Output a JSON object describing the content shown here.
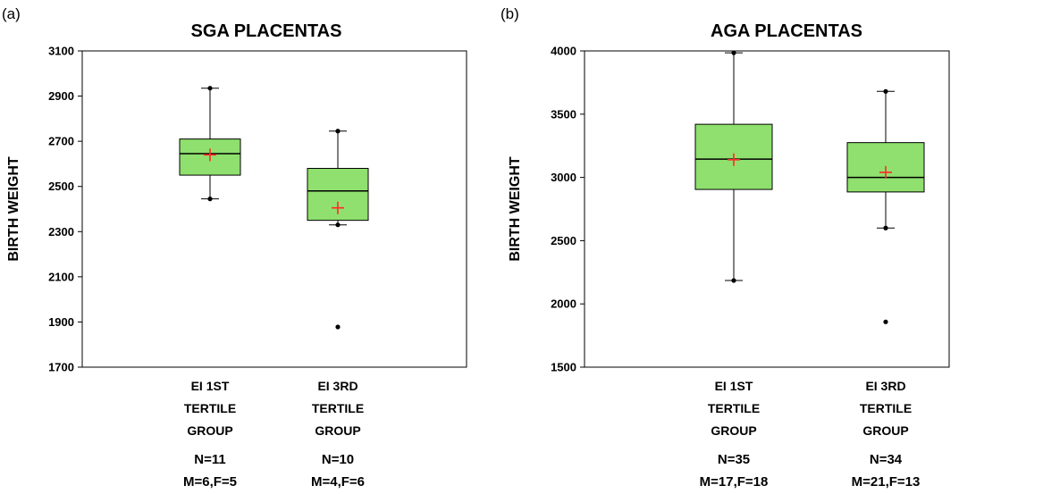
{
  "chart_data": [
    {
      "panel_label": "(a)",
      "type": "box",
      "title": "SGA PLACENTAS",
      "xlabel": "",
      "ylabel": "BIRTH WEIGHT",
      "ylim": [
        1700,
        3100
      ],
      "yticks": [
        1700,
        1900,
        2100,
        2300,
        2500,
        2700,
        2900,
        3100
      ],
      "grid": false,
      "box_color": "#8fe06e",
      "mean_color": "#ff2a2a",
      "categories": [
        {
          "label_lines": [
            "EI  1ST",
            "TERTILE",
            "GROUP"
          ],
          "notes": [
            "N=11",
            "M=6,F=5"
          ],
          "min": 2445,
          "q1": 2550,
          "median": 2645,
          "q3": 2710,
          "max": 2935,
          "mean": 2640,
          "outliers": []
        },
        {
          "label_lines": [
            "EI  3RD",
            "TERTILE",
            "GROUP"
          ],
          "notes": [
            "N=10",
            "M=4,F=6"
          ],
          "min": 2330,
          "q1": 2350,
          "median": 2480,
          "q3": 2580,
          "max": 2745,
          "mean": 2405,
          "outliers": [
            1878
          ]
        }
      ]
    },
    {
      "panel_label": "(b)",
      "type": "box",
      "title": "AGA PLACENTAS",
      "xlabel": "",
      "ylabel": "BIRTH WEIGHT",
      "ylim": [
        1500,
        4000
      ],
      "yticks": [
        1500,
        2000,
        2500,
        3000,
        3500,
        4000
      ],
      "grid": false,
      "box_color": "#8fe06e",
      "mean_color": "#ff2a2a",
      "categories": [
        {
          "label_lines": [
            "EI 1ST",
            "TERTILE",
            "GROUP"
          ],
          "notes": [
            "N=35",
            "M=17,F=18"
          ],
          "min": 2185,
          "q1": 2905,
          "median": 3145,
          "q3": 3420,
          "max": 3985,
          "mean": 3140,
          "outliers": []
        },
        {
          "label_lines": [
            "EI 3RD",
            "TERTILE",
            "GROUP"
          ],
          "notes": [
            "N=34",
            "M=21,F=13"
          ],
          "min": 2600,
          "q1": 2885,
          "median": 3000,
          "q3": 3275,
          "max": 3680,
          "mean": 3040,
          "outliers": [
            1858
          ]
        }
      ]
    }
  ]
}
